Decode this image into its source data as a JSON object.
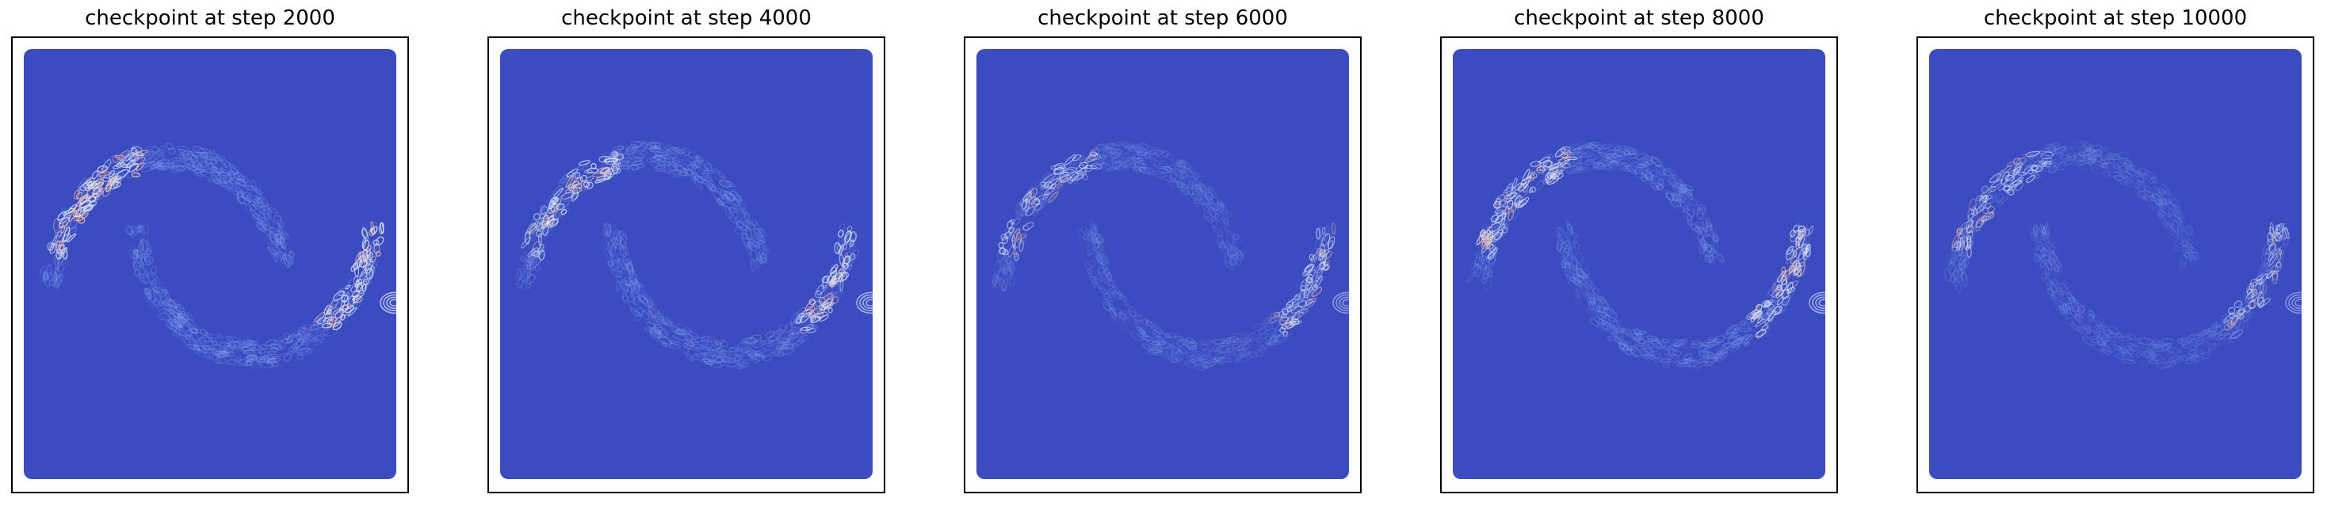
{
  "figure": {
    "panels": [
      {
        "title": "checkpoint at step 2000"
      },
      {
        "title": "checkpoint at step 4000"
      },
      {
        "title": "checkpoint at step 6000"
      },
      {
        "title": "checkpoint at step 8000"
      },
      {
        "title": "checkpoint at step 10000"
      }
    ]
  },
  "chart_data": [
    {
      "type": "heatmap",
      "title": "checkpoint at step 2000",
      "xlabel": "",
      "ylabel": "",
      "colormap": "coolwarm",
      "background_color": "#3b4cc0",
      "axis_ticks": "none",
      "grid": false,
      "legend": "none",
      "intensity": 1.0
    },
    {
      "type": "heatmap",
      "title": "checkpoint at step 4000",
      "xlabel": "",
      "ylabel": "",
      "colormap": "coolwarm",
      "background_color": "#3b4cc0",
      "axis_ticks": "none",
      "grid": false,
      "legend": "none",
      "intensity": 0.9
    },
    {
      "type": "heatmap",
      "title": "checkpoint at step 6000",
      "xlabel": "",
      "ylabel": "",
      "colormap": "coolwarm",
      "background_color": "#3b4cc0",
      "axis_ticks": "none",
      "grid": false,
      "legend": "none",
      "intensity": 0.7
    },
    {
      "type": "heatmap",
      "title": "checkpoint at step 8000",
      "xlabel": "",
      "ylabel": "",
      "colormap": "coolwarm",
      "background_color": "#3b4cc0",
      "axis_ticks": "none",
      "grid": false,
      "legend": "none",
      "intensity": 0.85
    },
    {
      "type": "heatmap",
      "title": "checkpoint at step 10000",
      "xlabel": "",
      "ylabel": "",
      "colormap": "coolwarm",
      "background_color": "#3b4cc0",
      "axis_ticks": "none",
      "grid": false,
      "legend": "none",
      "intensity": 0.65
    }
  ]
}
